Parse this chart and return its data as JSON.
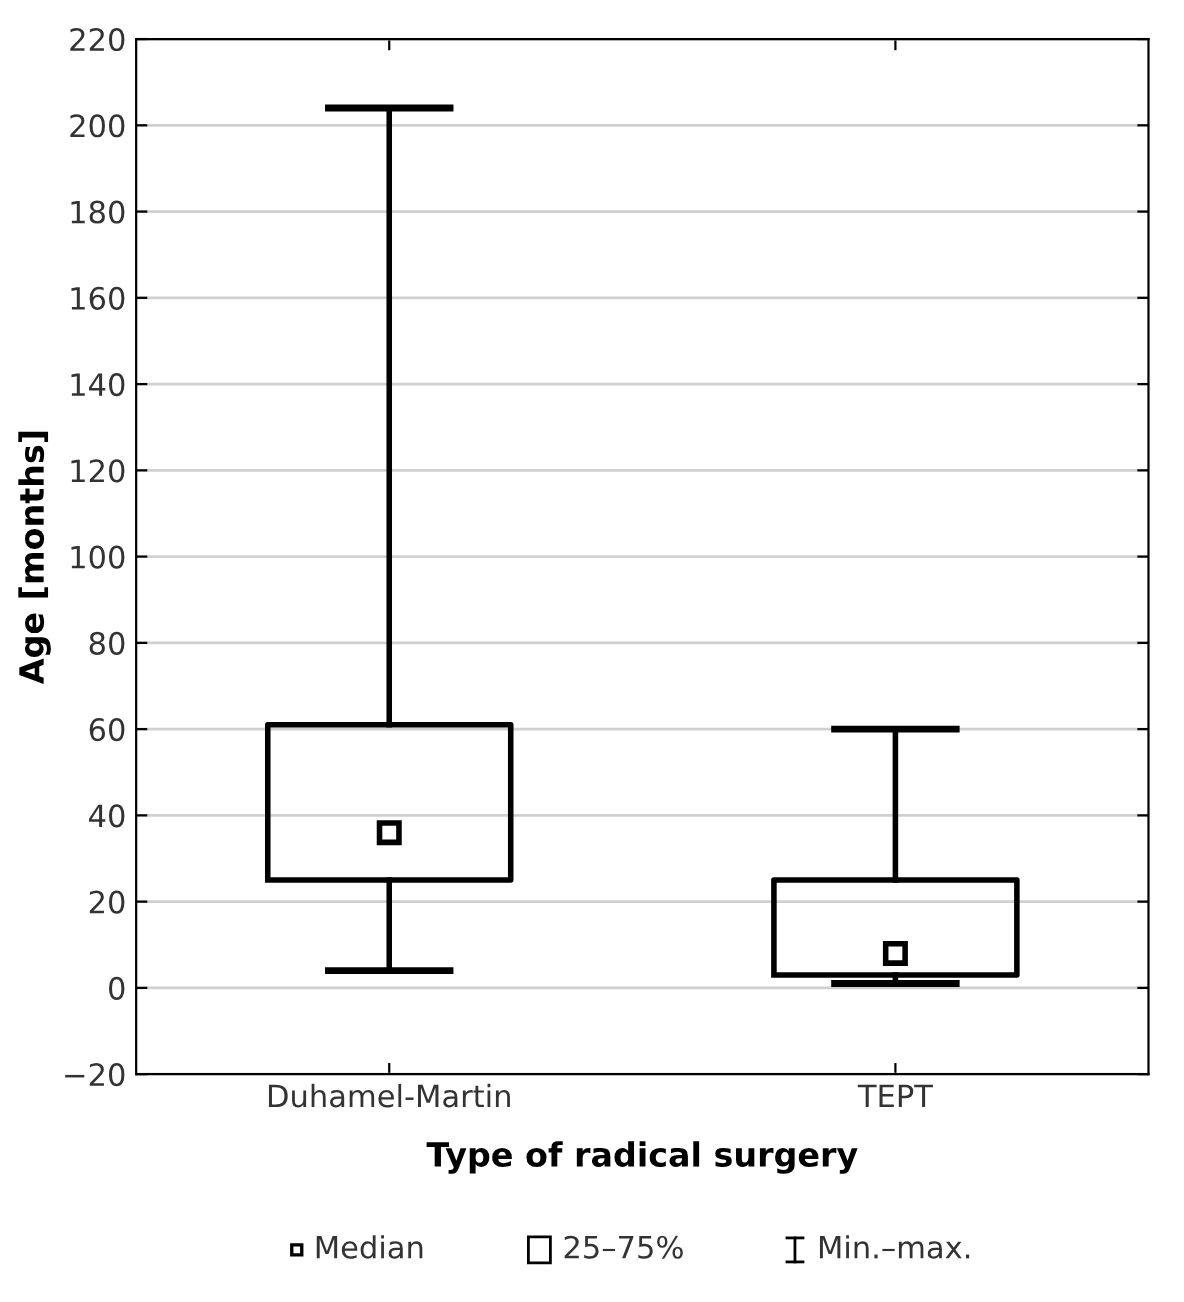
{
  "chart_data": {
    "type": "box",
    "xlabel": "Type of radical surgery",
    "ylabel": "Age [months]",
    "categories": [
      "Duhamel-Martin",
      "TEPT"
    ],
    "boxes": [
      {
        "low": 4,
        "q1": 25,
        "median": 36,
        "q3": 61,
        "high": 204
      },
      {
        "low": 1,
        "q1": 3,
        "median": 8,
        "q3": 25,
        "high": 60
      }
    ],
    "color": "#000000",
    "ylim": [
      -20,
      220
    ],
    "yticks": [
      {
        "value": -20,
        "label": "−20"
      },
      0,
      20,
      40,
      60,
      80,
      100,
      120,
      140,
      160,
      180,
      200,
      220
    ],
    "grid": "y",
    "marker": "square",
    "annotations": [
      "Median",
      "25–75%",
      "Min.–max."
    ]
  }
}
